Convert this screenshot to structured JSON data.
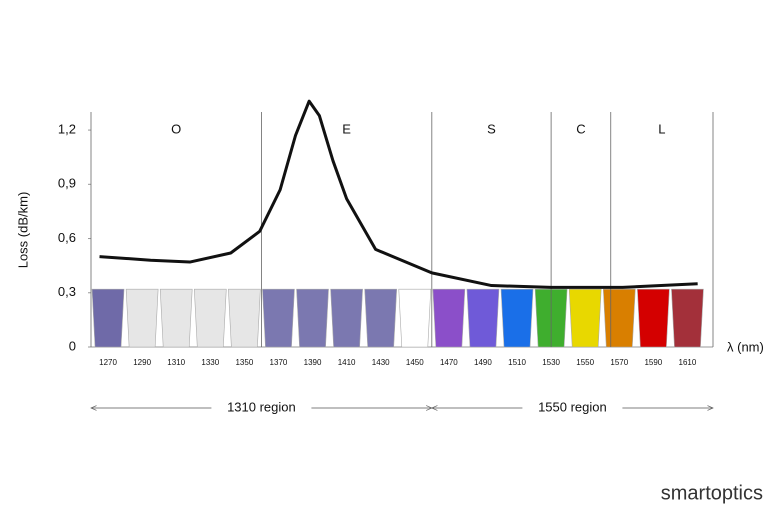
{
  "chart_data": {
    "type": "line",
    "ylabel": "Loss (dB/km)",
    "xlabel": "λ (nm)",
    "xlim": [
      1260,
      1625
    ],
    "ylim": [
      0,
      1.3
    ],
    "yticks": [
      0,
      {
        "value": 0.3,
        "label": "0,3"
      },
      {
        "value": 0.6,
        "label": "0,6"
      },
      {
        "value": 0.9,
        "label": "0,9"
      },
      {
        "value": 1.2,
        "label": "1,2"
      }
    ],
    "x": [
      1265,
      1295,
      1318,
      1342,
      1359,
      1371,
      1380,
      1388,
      1394,
      1402,
      1410,
      1427,
      1460,
      1495,
      1530,
      1572,
      1616
    ],
    "values": [
      0.5,
      0.48,
      0.47,
      0.52,
      0.64,
      0.87,
      1.17,
      1.36,
      1.28,
      1.03,
      0.82,
      0.54,
      0.41,
      0.34,
      0.33,
      0.33,
      0.35
    ],
    "color": "#111111",
    "channels": {
      "categories": [
        1270,
        1290,
        1310,
        1330,
        1350,
        1370,
        1390,
        1410,
        1430,
        1450,
        1470,
        1490,
        1510,
        1530,
        1550,
        1570,
        1590,
        1610
      ],
      "values": [
        0.32,
        0.32,
        0.32,
        0.32,
        0.32,
        0.32,
        0.32,
        0.32,
        0.32,
        0.32,
        0.32,
        0.32,
        0.32,
        0.32,
        0.32,
        0.32,
        0.32,
        0.32
      ],
      "colors": [
        "#6f6aa8",
        "#e6e6e6",
        "#e6e6e6",
        "#e6e6e6",
        "#e6e6e6",
        "#7b78b0",
        "#7b78b0",
        "#7b78b0",
        "#7b78b0",
        "#ffffff",
        "#8b4fc9",
        "#6f5ad8",
        "#1a6fe8",
        "#3fae2e",
        "#e8d800",
        "#d97f00",
        "#d40000",
        "#a3303a"
      ]
    },
    "bands": [
      {
        "name": "O",
        "start": 1260,
        "end": 1360
      },
      {
        "name": "E",
        "start": 1360,
        "end": 1460
      },
      {
        "name": "S",
        "start": 1460,
        "end": 1530
      },
      {
        "name": "C",
        "start": 1530,
        "end": 1565
      },
      {
        "name": "L",
        "start": 1565,
        "end": 1625
      }
    ],
    "regions": [
      {
        "label": "1310 region",
        "start": 1260,
        "end": 1460
      },
      {
        "label": "1550 region",
        "start": 1460,
        "end": 1625
      }
    ],
    "logo": "smartoptics"
  }
}
